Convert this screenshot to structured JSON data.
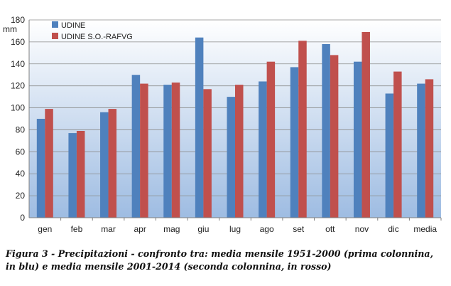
{
  "chart_data": {
    "type": "bar",
    "title": "",
    "xlabel": "",
    "ylabel": "mm",
    "ylim": [
      0,
      180
    ],
    "yticks": [
      0,
      20,
      40,
      60,
      80,
      100,
      120,
      140,
      160,
      180
    ],
    "categories": [
      "gen",
      "feb",
      "mar",
      "apr",
      "mag",
      "giu",
      "lug",
      "ago",
      "set",
      "ott",
      "nov",
      "dic",
      "media"
    ],
    "series": [
      {
        "name": "UDINE",
        "color": "#4f81bd",
        "values": [
          90,
          77,
          96,
          130,
          121,
          164,
          110,
          124,
          137,
          158,
          142,
          113,
          122
        ]
      },
      {
        "name": "UDINE S.O.-RAFVG",
        "color": "#c0504d",
        "values": [
          99,
          79,
          99,
          122,
          123,
          117,
          121,
          142,
          161,
          148,
          169,
          133,
          126
        ]
      }
    ],
    "grid": true,
    "legend_position": "top-left",
    "background_gradient": [
      "#ffffff",
      "#9ebce2"
    ]
  },
  "caption": {
    "line1": "Figura 3 - Precipitazioni - confronto tra: media mensile 1951-2000 (prima colonnina,",
    "line2": "in blu) e media mensile 2001-2014 (seconda colonnina, in rosso)"
  }
}
